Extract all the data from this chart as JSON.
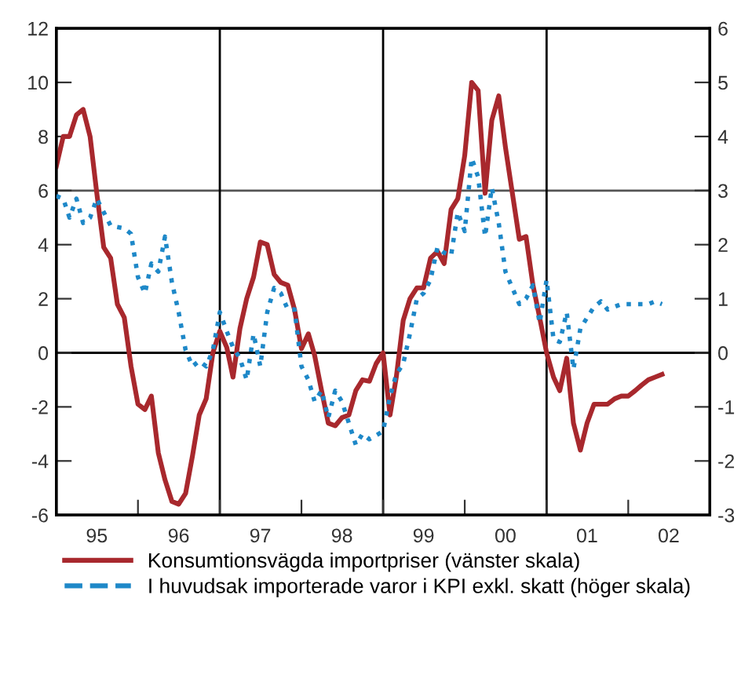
{
  "chart_data": {
    "type": "line",
    "x": [
      "1995-01",
      "1995-02",
      "1995-03",
      "1995-04",
      "1995-05",
      "1995-06",
      "1995-07",
      "1995-08",
      "1995-09",
      "1995-10",
      "1995-11",
      "1995-12",
      "1996-01",
      "1996-02",
      "1996-03",
      "1996-04",
      "1996-05",
      "1996-06",
      "1996-07",
      "1996-08",
      "1996-09",
      "1996-10",
      "1996-11",
      "1996-12",
      "1997-01",
      "1997-02",
      "1997-03",
      "1997-04",
      "1997-05",
      "1997-06",
      "1997-07",
      "1997-08",
      "1997-09",
      "1997-10",
      "1997-11",
      "1997-12",
      "1998-01",
      "1998-02",
      "1998-03",
      "1998-04",
      "1998-05",
      "1998-06",
      "1998-07",
      "1998-08",
      "1998-09",
      "1998-10",
      "1998-11",
      "1998-12",
      "1999-01",
      "1999-02",
      "1999-03",
      "1999-04",
      "1999-05",
      "1999-06",
      "1999-07",
      "1999-08",
      "1999-09",
      "1999-10",
      "1999-11",
      "1999-12",
      "2000-01",
      "2000-02",
      "2000-03",
      "2000-04",
      "2000-05",
      "2000-06",
      "2000-07",
      "2000-08",
      "2000-09",
      "2000-10",
      "2000-11",
      "2000-12",
      "2001-01",
      "2001-02",
      "2001-03",
      "2001-04",
      "2001-05",
      "2001-06",
      "2001-07",
      "2001-08",
      "2001-09",
      "2001-10",
      "2001-11",
      "2001-12",
      "2002-01",
      "2002-02",
      "2002-03",
      "2002-04",
      "2002-05",
      "2002-06"
    ],
    "series": [
      {
        "name": "Konsumtionsvägda importpriser (vänster skala)",
        "color": "#a8282d",
        "line_style": "solid",
        "values": [
          6.9,
          8.0,
          8.0,
          8.8,
          9.0,
          8.0,
          5.9,
          3.9,
          3.5,
          1.8,
          1.3,
          -0.5,
          -1.9,
          -2.1,
          -1.6,
          -3.7,
          -4.7,
          -5.5,
          -5.6,
          -5.2,
          -3.8,
          -2.3,
          -1.7,
          0,
          0.8,
          0.2,
          -0.9,
          0.9,
          2.0,
          2.8,
          4.1,
          4.0,
          2.9,
          2.6,
          2.5,
          1.6,
          0.15,
          0.7,
          -0.1,
          -1.4,
          -2.6,
          -2.7,
          -2.4,
          -2.3,
          -1.4,
          -1.0,
          -1.05,
          -0.4,
          0,
          -2.3,
          -0.9,
          1.2,
          2.0,
          2.4,
          2.4,
          3.5,
          3.75,
          3.3,
          5.3,
          5.7,
          7.3,
          10.0,
          9.7,
          5.9,
          8.6,
          9.5,
          7.6,
          5.9,
          4.2,
          4.3,
          2.5,
          1.3,
          0,
          -0.9,
          -1.4,
          -0.2,
          -2.6,
          -3.6,
          -2.6,
          -1.9,
          -1.9,
          -1.9,
          -1.7,
          -1.6,
          -1.6,
          -1.4,
          -1.2,
          -1.0,
          -0.9,
          -0.8
        ]
      },
      {
        "name": "I huvudsak importerade varor i KPI exkl. skatt (höger skala)",
        "color": "#1e88c8",
        "line_style": "dotted",
        "axis": "y2",
        "x": [
          "1995-01",
          "1995-02",
          "1995-03",
          "1995-04",
          "1995-05",
          "1995-06",
          "1995-07",
          "1995-08",
          "1995-09",
          "1995-11",
          "1995-12",
          "1996-01",
          "1996-02",
          "1996-03",
          "1996-04",
          "1996-05",
          "1996-06",
          "1996-07",
          "1996-08",
          "1996-09",
          "1996-10",
          "1996-11",
          "1996-12",
          "1997-01",
          "1997-02",
          "1997-03",
          "1997-04",
          "1997-05",
          "1997-06",
          "1997-07",
          "1997-08",
          "1997-09",
          "1997-10",
          "1997-11",
          "1997-12",
          "1998-01",
          "1998-02",
          "1998-03",
          "1998-04",
          "1998-05",
          "1998-06",
          "1998-07",
          "1998-08",
          "1998-09",
          "1998-10",
          "1998-11",
          "1999-01",
          "1999-02",
          "1999-03",
          "1999-04",
          "1999-05",
          "1999-06",
          "1999-07",
          "1999-08",
          "1999-09",
          "1999-10",
          "1999-11",
          "1999-12",
          "2000-01",
          "2000-02",
          "2000-03",
          "2000-04",
          "2000-05",
          "2000-06",
          "2000-07",
          "2000-08",
          "2000-09",
          "2000-10",
          "2000-11",
          "2000-12",
          "2001-01",
          "2001-02",
          "2001-03",
          "2001-04",
          "2001-05",
          "2001-06",
          "2001-07",
          "2001-08",
          "2001-09",
          "2001-10",
          "2001-12",
          "2002-02",
          "2002-04",
          "2002-05",
          "2002-06"
        ],
        "values": [
          2.9,
          2.85,
          2.5,
          2.85,
          2.4,
          2.5,
          2.85,
          2.6,
          2.35,
          2.3,
          2.2,
          1.4,
          1.1,
          1.65,
          1.5,
          2.15,
          1.3,
          0.75,
          0.05,
          -0.25,
          -0.15,
          -0.25,
          0.05,
          0.75,
          0.4,
          0.1,
          -0.1,
          -0.5,
          0.35,
          -0.25,
          0.75,
          1.2,
          1.1,
          0.8,
          0.8,
          -0.25,
          -0.5,
          -0.9,
          -0.7,
          -1.2,
          -0.7,
          -0.9,
          -1.3,
          -1.7,
          -1.5,
          -1.6,
          -1.45,
          -0.8,
          -0.4,
          -0.2,
          0.35,
          1.0,
          1.1,
          1.35,
          1.95,
          1.85,
          1.8,
          2.6,
          2.25,
          3.6,
          3.25,
          2.15,
          3.05,
          2.4,
          1.5,
          1.2,
          0.9,
          1.0,
          1.25,
          0.55,
          1.35,
          0.25,
          0.2,
          0.75,
          -0.3,
          0.45,
          0.65,
          0.85,
          0.95,
          0.8,
          0.9,
          0.9,
          0.9,
          0.95,
          0.9
        ]
      }
    ],
    "xlim": [
      "1995-01",
      "2003-01"
    ],
    "xticks": [
      {
        "value": "1995-01",
        "label": null
      },
      {
        "value": "1995-07",
        "label": "95"
      },
      {
        "value": "1996-01",
        "label": null
      },
      {
        "value": "1996-07",
        "label": "96"
      },
      {
        "value": "1997-01",
        "label": null
      },
      {
        "value": "1997-07",
        "label": "97"
      },
      {
        "value": "1998-01",
        "label": null
      },
      {
        "value": "1998-07",
        "label": "98"
      },
      {
        "value": "1999-01",
        "label": null
      },
      {
        "value": "1999-07",
        "label": "99"
      },
      {
        "value": "2000-01",
        "label": null
      },
      {
        "value": "2000-07",
        "label": "00"
      },
      {
        "value": "2001-01",
        "label": null
      },
      {
        "value": "2001-07",
        "label": "01"
      },
      {
        "value": "2002-01",
        "label": null
      },
      {
        "value": "2002-07",
        "label": "02"
      },
      {
        "value": "2003-01",
        "label": null
      }
    ],
    "ylim": [
      -6,
      12
    ],
    "yticks": [
      -6,
      -4,
      -2,
      0,
      2,
      4,
      6,
      8,
      10,
      12
    ],
    "y2lim": [
      -3,
      6
    ],
    "y2ticks": [
      -3,
      -2,
      -1,
      0,
      1,
      2,
      3,
      4,
      5,
      6
    ],
    "ref_lines": [
      {
        "axis": "y",
        "value": 0,
        "color": "#000000"
      },
      {
        "axis": "y",
        "value": 6,
        "color": "#555555"
      },
      {
        "axis": "x",
        "value": "1997-01",
        "color": "#000000"
      },
      {
        "axis": "x",
        "value": "1999-01",
        "color": "#000000"
      },
      {
        "axis": "x",
        "value": "2001-01",
        "color": "#000000"
      }
    ],
    "legend": "bottom",
    "grid": false,
    "marker": "none"
  }
}
